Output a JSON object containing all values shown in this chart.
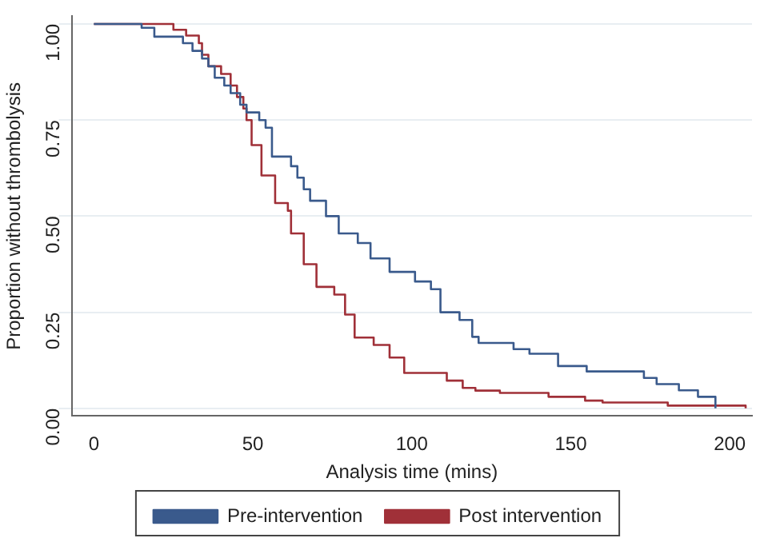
{
  "chart_data": {
    "type": "step",
    "xlabel": "Analysis time (mins)",
    "ylabel": "Proportion without thrombolysis",
    "xlim": [
      -7,
      207
    ],
    "xticks": [
      0,
      50,
      100,
      150,
      200
    ],
    "ylim": [
      -0.02,
      1.02
    ],
    "yticks": [
      {
        "value": 0,
        "label": "0.00"
      },
      {
        "value": 0.25,
        "label": "0.25"
      },
      {
        "value": 0.5,
        "label": "0.50"
      },
      {
        "value": 0.75,
        "label": "0.75"
      },
      {
        "value": 1,
        "label": "1.00"
      }
    ],
    "grid": "y",
    "legend": "bottom",
    "marker": "none",
    "line_style": "solid",
    "series": [
      {
        "name": "Pre-intervention",
        "color": "#3a5a8c",
        "x": [
          0,
          15,
          19,
          28,
          31,
          34,
          36,
          38,
          41,
          43,
          46,
          48,
          52,
          54,
          56,
          62,
          64,
          66,
          68,
          73,
          77,
          83,
          87,
          93,
          101,
          106,
          109,
          115,
          119,
          121,
          132,
          137,
          146,
          155,
          173,
          177,
          184,
          190,
          195.5
        ],
        "values": [
          1,
          0.99,
          0.967,
          0.95,
          0.93,
          0.91,
          0.89,
          0.86,
          0.84,
          0.82,
          0.79,
          0.77,
          0.75,
          0.73,
          0.655,
          0.63,
          0.6,
          0.57,
          0.54,
          0.5,
          0.455,
          0.43,
          0.39,
          0.355,
          0.33,
          0.31,
          0.25,
          0.23,
          0.186,
          0.17,
          0.154,
          0.142,
          0.11,
          0.096,
          0.079,
          0.063,
          0.047,
          0.03,
          0
        ]
      },
      {
        "name": "Post intervention",
        "color": "#a03038",
        "x": [
          0,
          25,
          29,
          33,
          34,
          36,
          40,
          43,
          45,
          47,
          48,
          49.6,
          52.7,
          57,
          61,
          62,
          66,
          70,
          75.6,
          79,
          82,
          88,
          93,
          97.6,
          111,
          116,
          120,
          127.7,
          143,
          154.5,
          160,
          180.5,
          205
        ],
        "values": [
          1,
          0.985,
          0.97,
          0.95,
          0.92,
          0.89,
          0.87,
          0.84,
          0.81,
          0.78,
          0.75,
          0.685,
          0.606,
          0.534,
          0.514,
          0.455,
          0.375,
          0.316,
          0.296,
          0.244,
          0.184,
          0.165,
          0.132,
          0.092,
          0.072,
          0.053,
          0.046,
          0.04,
          0.03,
          0.02,
          0.015,
          0.007,
          0
        ]
      }
    ]
  }
}
